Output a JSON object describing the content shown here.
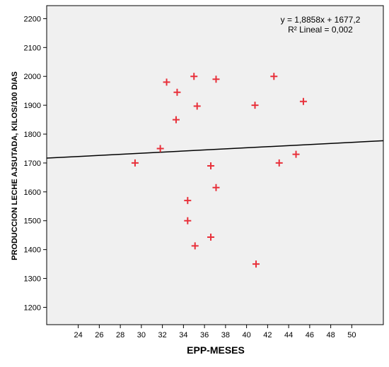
{
  "chart_data": {
    "type": "scatter",
    "xlabel": "EPP-MESES",
    "ylabel": "PRODUCCION LECHE AJSUTADA, KILOS/100 DIAS",
    "xlim": [
      21,
      53
    ],
    "ylim": [
      1140,
      2245
    ],
    "xticks": [
      24,
      26,
      28,
      30,
      32,
      34,
      36,
      38,
      40,
      42,
      44,
      46,
      48,
      50
    ],
    "yticks": [
      1200,
      1300,
      1400,
      1500,
      1600,
      1700,
      1800,
      1900,
      2000,
      2100,
      2200
    ],
    "xtick_labels": [
      "24",
      "26",
      "28",
      "30",
      "32",
      "34",
      "36",
      "38",
      "40",
      "42",
      "44",
      "46",
      "48",
      "50"
    ],
    "ytick_labels": [
      "1200",
      "1300",
      "1400",
      "1500",
      "1600",
      "1700",
      "1800",
      "1900",
      "2000",
      "2100",
      "2200"
    ],
    "grid": false,
    "background_color": "#f0f0f0",
    "marker_color": "#e8303a",
    "fit_line_color": "#000000",
    "fit_line": {
      "slope": 1.8858,
      "intercept": 1677.2
    },
    "annotation": [
      "y = 1,8858x + 1677,2",
      "R² Lineal = 0,002"
    ],
    "points": [
      {
        "x": 29.4,
        "y": 1700
      },
      {
        "x": 31.8,
        "y": 1750
      },
      {
        "x": 32.4,
        "y": 1980
      },
      {
        "x": 33.3,
        "y": 1850
      },
      {
        "x": 33.4,
        "y": 1945
      },
      {
        "x": 34.4,
        "y": 1570
      },
      {
        "x": 34.4,
        "y": 1500
      },
      {
        "x": 35.0,
        "y": 2000
      },
      {
        "x": 35.1,
        "y": 1413
      },
      {
        "x": 35.3,
        "y": 1897
      },
      {
        "x": 36.6,
        "y": 1690
      },
      {
        "x": 36.6,
        "y": 1443
      },
      {
        "x": 37.1,
        "y": 1990
      },
      {
        "x": 37.1,
        "y": 1615
      },
      {
        "x": 40.8,
        "y": 1900
      },
      {
        "x": 40.9,
        "y": 1350
      },
      {
        "x": 42.6,
        "y": 2000
      },
      {
        "x": 43.1,
        "y": 1700
      },
      {
        "x": 44.7,
        "y": 1730
      },
      {
        "x": 45.4,
        "y": 1913
      }
    ]
  }
}
